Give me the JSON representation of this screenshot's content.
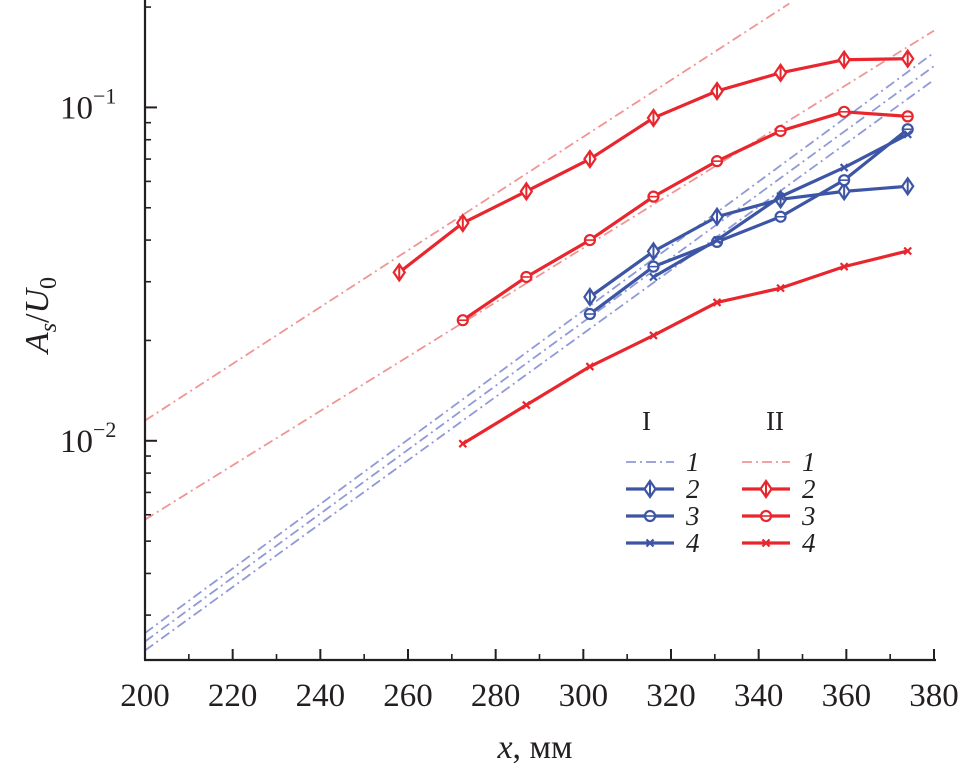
{
  "chart_data": {
    "type": "line",
    "title": "",
    "xlabel": {
      "var": "x",
      "unit": ", мм"
    },
    "ylabel": {
      "main": "A",
      "sub": "s",
      "sep": "/",
      "main2": "U",
      "sub2": "0"
    },
    "xlim": [
      200,
      380
    ],
    "ylim": [
      0.0022,
      0.21
    ],
    "yscale": "log",
    "x_ticks": [
      200,
      220,
      240,
      260,
      280,
      300,
      320,
      340,
      360,
      380
    ],
    "x_tick_labels": [
      "200",
      "220",
      "240",
      "260",
      "280",
      "300",
      "320",
      "340",
      "360",
      "380"
    ],
    "y_major_ticks": [
      {
        "value": 0.01,
        "base": "10",
        "exp": "−2"
      },
      {
        "value": 0.1,
        "base": "10",
        "exp": "−1"
      }
    ],
    "y_minor_ticks": [
      0.003,
      0.004,
      0.005,
      0.006,
      0.007,
      0.008,
      0.009,
      0.02,
      0.03,
      0.04,
      0.05,
      0.06,
      0.07,
      0.08,
      0.09,
      0.2
    ],
    "grid": false,
    "legend_position": "right-middle",
    "colors": {
      "I": "#3d55a5",
      "II": "#e8262d",
      "I_fit": "#8f9ad6",
      "II_fit": "#f09595",
      "axis": "#231f20"
    },
    "legend": {
      "groups": [
        {
          "header": "I",
          "color_key": "I"
        },
        {
          "header": "II",
          "color_key": "II"
        }
      ],
      "rows": [
        {
          "label": "1",
          "style": "dashdot",
          "marker": "none"
        },
        {
          "label": "2",
          "style": "solid",
          "marker": "diamond"
        },
        {
          "label": "3",
          "style": "solid",
          "marker": "circle"
        },
        {
          "label": "4",
          "style": "solid",
          "marker": "x"
        }
      ]
    },
    "series": [
      {
        "name": "II-2",
        "group": "II",
        "marker": "diamond",
        "x": [
          258,
          272.5,
          287,
          301.5,
          316,
          330.5,
          345,
          359.5,
          374
        ],
        "y": [
          0.032,
          0.045,
          0.056,
          0.07,
          0.093,
          0.112,
          0.127,
          0.139,
          0.14
        ]
      },
      {
        "name": "II-3",
        "group": "II",
        "marker": "circle",
        "x": [
          272.5,
          287,
          301.5,
          316,
          330.5,
          345,
          359.5,
          374
        ],
        "y": [
          0.023,
          0.031,
          0.04,
          0.054,
          0.069,
          0.085,
          0.097,
          0.094
        ]
      },
      {
        "name": "II-4",
        "group": "II",
        "marker": "x",
        "x": [
          272.5,
          287,
          301.5,
          316,
          330.5,
          345,
          359.5,
          374
        ],
        "y": [
          0.0098,
          0.0128,
          0.0167,
          0.0207,
          0.026,
          0.0287,
          0.0333,
          0.0371
        ]
      },
      {
        "name": "I-2",
        "group": "I",
        "marker": "diamond",
        "x": [
          301.5,
          316,
          330.5,
          345,
          359.5,
          374
        ],
        "y": [
          0.027,
          0.037,
          0.047,
          0.053,
          0.056,
          0.058
        ]
      },
      {
        "name": "I-3",
        "group": "I",
        "marker": "circle",
        "x": [
          301.5,
          316,
          330.5,
          345,
          359.5,
          374
        ],
        "y": [
          0.024,
          0.0333,
          0.0395,
          0.047,
          0.0605,
          0.086
        ]
      },
      {
        "name": "I-4",
        "group": "I",
        "marker": "x",
        "x": [
          316,
          330.5,
          345,
          359.5,
          374
        ],
        "y": [
          0.031,
          0.04,
          0.054,
          0.066,
          0.083
        ]
      }
    ],
    "fit_lines": [
      {
        "name": "I-1a",
        "group": "I",
        "x": [
          200,
          380
        ],
        "y": [
          0.00265,
          0.146
        ]
      },
      {
        "name": "I-1b",
        "group": "I",
        "x": [
          200,
          380
        ],
        "y": [
          0.0025,
          0.133
        ]
      },
      {
        "name": "I-1c",
        "group": "I",
        "x": [
          200,
          380
        ],
        "y": [
          0.00235,
          0.121
        ]
      },
      {
        "name": "II-1a",
        "group": "II",
        "x": [
          200,
          347
        ],
        "y": [
          0.0115,
          0.205
        ]
      },
      {
        "name": "II-1b",
        "group": "II",
        "x": [
          200,
          380
        ],
        "y": [
          0.0058,
          0.17
        ]
      }
    ]
  }
}
